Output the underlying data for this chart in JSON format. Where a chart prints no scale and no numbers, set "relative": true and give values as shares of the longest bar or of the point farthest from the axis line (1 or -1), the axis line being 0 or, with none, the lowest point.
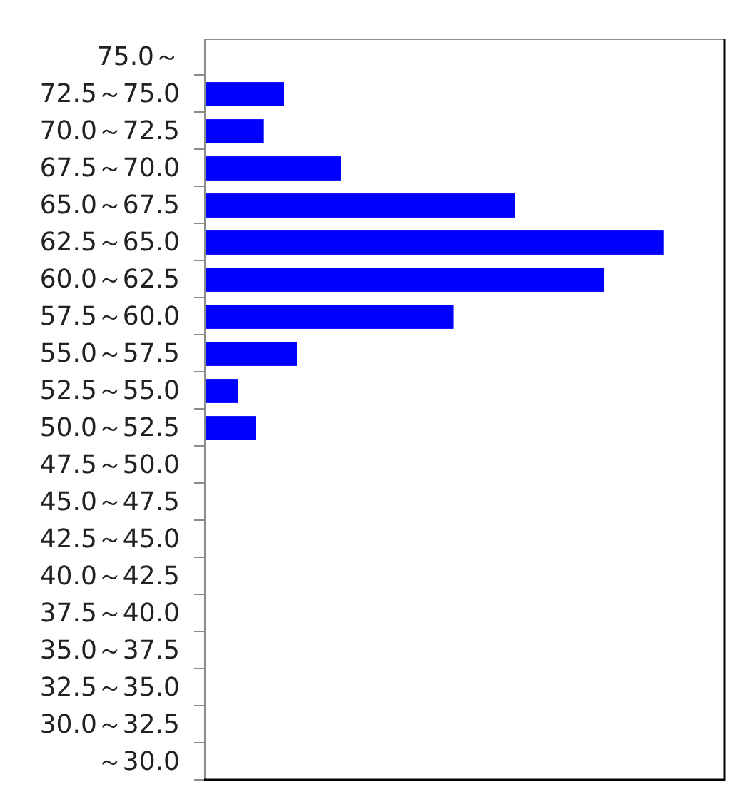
{
  "chart_data": {
    "type": "bar",
    "orientation": "horizontal",
    "relative": true,
    "categories": [
      "75.0～",
      "72.5～75.0",
      "70.0～72.5",
      "67.5～70.0",
      "65.0～67.5",
      "62.5～65.0",
      "60.0～62.5",
      "57.5～60.0",
      "55.0～57.5",
      "52.5～55.0",
      "50.0～52.5",
      "47.5～50.0",
      "45.0～47.5",
      "42.5～45.0",
      "40.0～42.5",
      "37.5～40.0",
      "35.0～37.5",
      "32.5～35.0",
      "30.0～32.5",
      "～30.0"
    ],
    "values": [
      0,
      0.174,
      0.13,
      0.298,
      0.677,
      1,
      0.87,
      0.543,
      0.202,
      0.074,
      0.112,
      0,
      0,
      0,
      0,
      0,
      0,
      0,
      0,
      0
    ],
    "color": "#0000ff"
  }
}
